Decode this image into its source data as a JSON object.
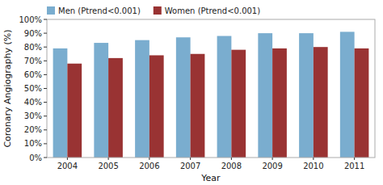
{
  "chart_data": {
    "type": "bar",
    "categories": [
      "2004",
      "2005",
      "2006",
      "2007",
      "2008",
      "2009",
      "2010",
      "2011"
    ],
    "series": [
      {
        "name": "Men (Ptrend<0.001)",
        "color": "#7aadcf",
        "values": [
          79,
          83,
          85,
          87,
          88,
          90,
          90,
          91
        ]
      },
      {
        "name": "Women (Ptrend<0.001)",
        "color": "#993333",
        "values": [
          68,
          72,
          74,
          75,
          78,
          79,
          80,
          79
        ]
      }
    ],
    "x_label": "Year",
    "y_label": "Coronary Angiography (%)",
    "ylim": [
      0,
      100
    ],
    "yticks": [
      {
        "value": 0,
        "label": "0%"
      },
      {
        "value": 10,
        "label": "10%"
      },
      {
        "value": 20,
        "label": "20%"
      },
      {
        "value": 30,
        "label": "30%"
      },
      {
        "value": 40,
        "label": "40%"
      },
      {
        "value": 50,
        "label": "50%"
      },
      {
        "value": 60,
        "label": "60%"
      },
      {
        "value": 70,
        "label": "70%"
      },
      {
        "value": 80,
        "label": "80%"
      },
      {
        "value": 90,
        "label": "90%"
      },
      {
        "value": 100,
        "label": "100%"
      }
    ],
    "grid": false,
    "legend": "upper left"
  }
}
